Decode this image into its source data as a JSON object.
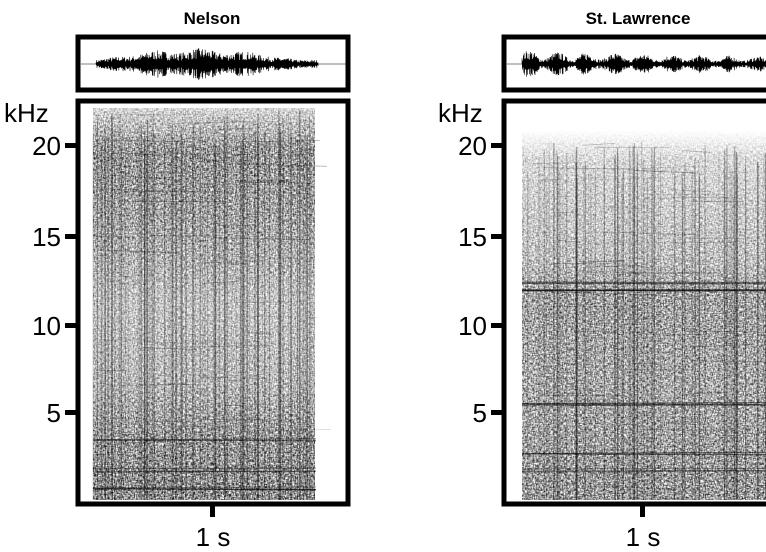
{
  "panels": [
    {
      "title": "Nelson",
      "y_unit": "kHz",
      "y_ticks": [
        "20",
        "15",
        "10",
        "5"
      ],
      "x_label": "1 s"
    },
    {
      "title": "St. Lawrence",
      "y_unit": "kHz",
      "y_ticks": [
        "20",
        "15",
        "10",
        "5"
      ],
      "x_label": "1 s"
    }
  ],
  "colors": {
    "frame": "#000000",
    "background": "#ffffff",
    "ink": "#000000"
  }
}
